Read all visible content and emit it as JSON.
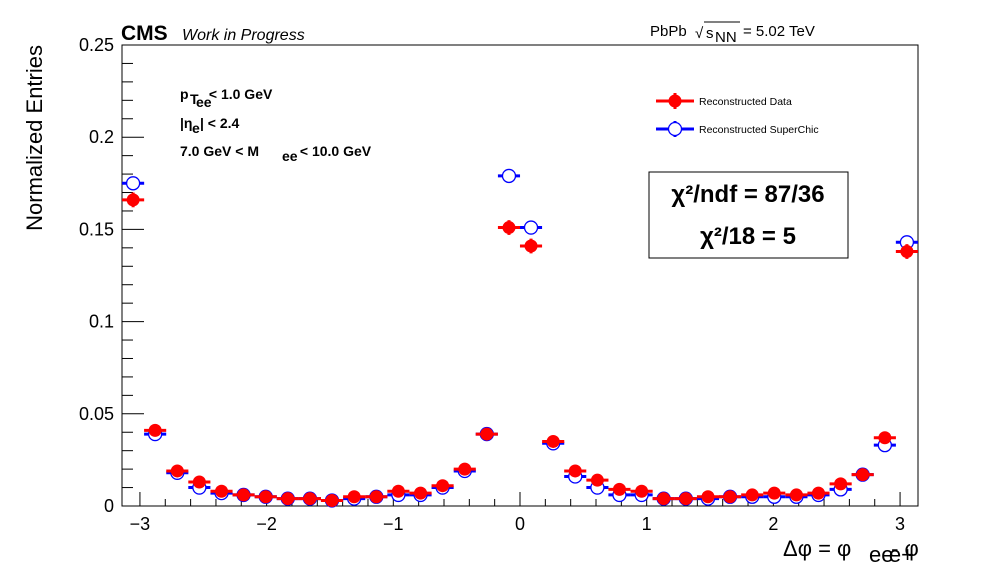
{
  "header": {
    "experiment": "CMS",
    "status": "Work in Progress",
    "system": "PbPb",
    "sqrt_symbol": "√",
    "energy_var": "s",
    "energy_sub": "NN",
    "energy_value": "= 5.02 TeV"
  },
  "cuts": {
    "pt": {
      "base": "p",
      "sub": "T",
      "subsub": "ee",
      "text": " < 1.0 GeV"
    },
    "eta": {
      "pre": "|η",
      "sub": "e",
      "post": "| < 2.4"
    },
    "mass": {
      "pre": "7.0 GeV < M",
      "sub": "ee",
      "post": " < 10.0 GeV"
    }
  },
  "legend": {
    "data": "Reconstructed Data",
    "mc": "Reconstructed SuperChic"
  },
  "chi": {
    "line1": "χ²/ndf = 87/36",
    "line2": "χ²/18 = 5"
  },
  "colors": {
    "data": "#ff0000",
    "mc": "#0000ff"
  },
  "chart_data": {
    "type": "scatter",
    "xlabel": {
      "main": "Δφ = φ",
      "sub1": "ee",
      "mid": " - φ",
      "sub2": "e+"
    },
    "ylabel": "Normalized Entries",
    "xlim": [
      -3.1416,
      3.1416
    ],
    "ylim": [
      0,
      0.25
    ],
    "bin_width": 0.1745,
    "x_ticks": [
      -3,
      -2,
      -1,
      0,
      1,
      2,
      3
    ],
    "x_tick_labels": [
      "−3",
      "−2",
      "−1",
      "0",
      "1",
      "2",
      "3"
    ],
    "y_ticks": [
      0,
      0.05,
      0.1,
      0.15,
      0.2,
      0.25
    ],
    "y_tick_labels": [
      "0",
      "0.05",
      "0.1",
      "0.15",
      "0.2",
      "0.25"
    ],
    "series": [
      {
        "name": "Reconstructed Data",
        "marker": "filled-circle",
        "x": [
          -3.054,
          -2.88,
          -2.705,
          -2.531,
          -2.356,
          -2.182,
          -2.007,
          -1.833,
          -1.658,
          -1.484,
          -1.309,
          -1.134,
          -0.96,
          -0.785,
          -0.611,
          -0.436,
          -0.262,
          -0.087,
          0.087,
          0.262,
          0.436,
          0.611,
          0.785,
          0.96,
          1.134,
          1.309,
          1.484,
          1.658,
          1.833,
          2.007,
          2.182,
          2.356,
          2.531,
          2.705,
          2.88,
          3.054
        ],
        "y": [
          0.166,
          0.041,
          0.019,
          0.013,
          0.008,
          0.006,
          0.005,
          0.004,
          0.004,
          0.003,
          0.005,
          0.005,
          0.008,
          0.007,
          0.011,
          0.02,
          0.039,
          0.151,
          0.141,
          0.035,
          0.019,
          0.014,
          0.009,
          0.008,
          0.004,
          0.004,
          0.005,
          0.005,
          0.006,
          0.007,
          0.006,
          0.007,
          0.012,
          0.017,
          0.037,
          0.138
        ],
        "err": [
          0.004,
          0.0015,
          0.001,
          0.001,
          0.0008,
          0.0007,
          0.0006,
          0.0006,
          0.0006,
          0.0005,
          0.0007,
          0.0007,
          0.0008,
          0.0008,
          0.001,
          0.0012,
          0.0015,
          0.004,
          0.004,
          0.0015,
          0.0012,
          0.001,
          0.0008,
          0.0008,
          0.0006,
          0.0006,
          0.0006,
          0.0006,
          0.0007,
          0.0008,
          0.0007,
          0.0008,
          0.001,
          0.001,
          0.0015,
          0.004
        ]
      },
      {
        "name": "Reconstructed SuperChic",
        "marker": "open-circle",
        "x": [
          -3.054,
          -2.88,
          -2.705,
          -2.531,
          -2.356,
          -2.182,
          -2.007,
          -1.833,
          -1.658,
          -1.484,
          -1.309,
          -1.134,
          -0.96,
          -0.785,
          -0.611,
          -0.436,
          -0.262,
          -0.087,
          0.087,
          0.262,
          0.436,
          0.611,
          0.785,
          0.96,
          1.134,
          1.309,
          1.484,
          1.658,
          1.833,
          2.007,
          2.182,
          2.356,
          2.531,
          2.705,
          2.88,
          3.054
        ],
        "y": [
          0.175,
          0.039,
          0.018,
          0.01,
          0.007,
          0.006,
          0.005,
          0.004,
          0.004,
          0.003,
          0.004,
          0.005,
          0.006,
          0.006,
          0.01,
          0.019,
          0.039,
          0.179,
          0.151,
          0.034,
          0.016,
          0.01,
          0.006,
          0.006,
          0.004,
          0.004,
          0.004,
          0.005,
          0.005,
          0.005,
          0.005,
          0.006,
          0.009,
          0.017,
          0.033,
          0.143
        ]
      }
    ]
  }
}
